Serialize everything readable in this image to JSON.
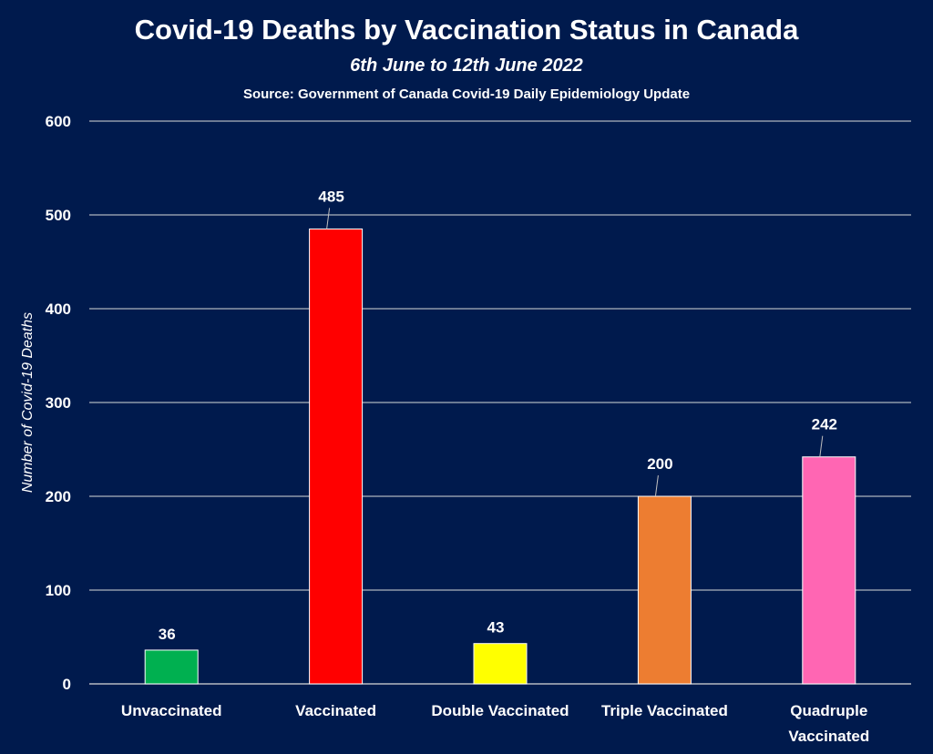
{
  "chart_data": {
    "type": "bar",
    "title": "Covid-19 Deaths by Vaccination Status in Canada",
    "subtitle": "6th June to 12th June 2022",
    "source": "Source: Government of Canada  Covid-19 Daily Epidemiology Update",
    "xlabel": "",
    "ylabel": "Number of Covid-19 Deaths",
    "ylim": [
      0,
      600
    ],
    "yticks": [
      0,
      100,
      200,
      300,
      400,
      500,
      600
    ],
    "grid": true,
    "legend": "none",
    "categories": [
      "Unvaccinated",
      "Vaccinated",
      "Double Vaccinated",
      "Triple Vaccinated",
      "Quadruple Vaccinated"
    ],
    "values": [
      36,
      485,
      43,
      200,
      242
    ],
    "colors": [
      "#00b050",
      "#ff0000",
      "#ffff00",
      "#ed7d31",
      "#ff66b3"
    ],
    "background": "#001a4d"
  }
}
